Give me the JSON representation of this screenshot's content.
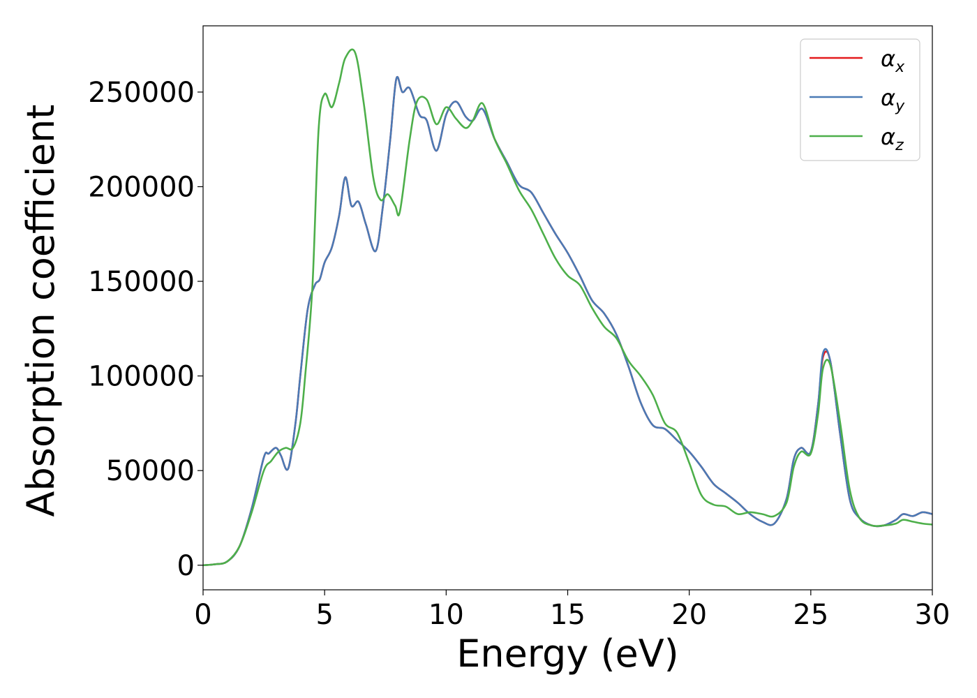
{
  "chart_data": {
    "type": "line",
    "xlabel": "Energy (eV)",
    "ylabel": "Absorption coefficient",
    "xlim": [
      0,
      30
    ],
    "ylim": [
      -13000,
      285000
    ],
    "grid": false,
    "legend_position": "top-right",
    "x_ticks": [
      0,
      5,
      10,
      15,
      20,
      25,
      30
    ],
    "y_ticks": [
      0,
      50000,
      100000,
      150000,
      200000,
      250000
    ],
    "series": [
      {
        "name": "αx",
        "symbol": "α",
        "subscript": "x",
        "color": "#e41a1c",
        "x": [
          0,
          0.5,
          1.0,
          1.5,
          2.0,
          2.5,
          2.7,
          3.0,
          3.2,
          3.5,
          3.8,
          4.0,
          4.3,
          4.6,
          4.8,
          5.0,
          5.3,
          5.6,
          5.85,
          6.1,
          6.4,
          6.7,
          7.1,
          7.4,
          7.7,
          7.95,
          8.2,
          8.5,
          8.9,
          9.2,
          9.6,
          10.0,
          10.4,
          10.8,
          11.1,
          11.5,
          12.0,
          12.5,
          13.0,
          13.5,
          14.0,
          14.5,
          15.0,
          15.5,
          16.0,
          16.5,
          17.0,
          17.5,
          18.0,
          18.5,
          19.0,
          19.5,
          20.0,
          20.5,
          21.0,
          21.5,
          22.0,
          22.5,
          23.0,
          23.5,
          24.0,
          24.3,
          24.6,
          25.0,
          25.3,
          25.5,
          25.8,
          26.2,
          26.6,
          27.0,
          27.5,
          28.0,
          28.5,
          28.8,
          29.2,
          29.6,
          30.0
        ],
        "y": [
          0,
          500,
          2000,
          10000,
          30000,
          57000,
          59000,
          62000,
          58000,
          51000,
          75000,
          100000,
          135000,
          148000,
          151000,
          160000,
          168000,
          185000,
          205000,
          190000,
          192000,
          180000,
          166000,
          190000,
          225000,
          257000,
          250000,
          252000,
          238000,
          235000,
          219000,
          238000,
          245000,
          237000,
          235000,
          241000,
          225000,
          213000,
          201000,
          197000,
          186000,
          175000,
          165000,
          153000,
          140000,
          133000,
          122000,
          105000,
          86000,
          74000,
          72000,
          66000,
          60000,
          52000,
          43000,
          38000,
          33000,
          27000,
          23000,
          22000,
          35000,
          56000,
          62000,
          60000,
          85000,
          110000,
          108000,
          70000,
          35000,
          25000,
          21000,
          21000,
          24000,
          27000,
          26000,
          28000,
          27000
        ]
      },
      {
        "name": "αy",
        "symbol": "α",
        "subscript": "y",
        "color": "#4a7ab5",
        "x": [
          0,
          0.5,
          1.0,
          1.5,
          2.0,
          2.5,
          2.7,
          3.0,
          3.2,
          3.5,
          3.8,
          4.0,
          4.3,
          4.6,
          4.8,
          5.0,
          5.3,
          5.6,
          5.85,
          6.1,
          6.4,
          6.7,
          7.1,
          7.4,
          7.7,
          7.95,
          8.2,
          8.5,
          8.9,
          9.2,
          9.6,
          10.0,
          10.4,
          10.8,
          11.1,
          11.5,
          12.0,
          12.5,
          13.0,
          13.5,
          14.0,
          14.5,
          15.0,
          15.5,
          16.0,
          16.5,
          17.0,
          17.5,
          18.0,
          18.5,
          19.0,
          19.5,
          20.0,
          20.5,
          21.0,
          21.5,
          22.0,
          22.5,
          23.0,
          23.5,
          24.0,
          24.3,
          24.6,
          25.0,
          25.3,
          25.5,
          25.8,
          26.2,
          26.6,
          27.0,
          27.5,
          28.0,
          28.5,
          28.8,
          29.2,
          29.6,
          30.0
        ],
        "y": [
          0,
          500,
          2000,
          10000,
          30000,
          57000,
          59000,
          62000,
          58000,
          51000,
          75000,
          100000,
          135000,
          148000,
          151000,
          160000,
          168000,
          185000,
          205000,
          190000,
          192000,
          180000,
          166000,
          190000,
          225000,
          257000,
          250000,
          252000,
          238000,
          235000,
          219000,
          238000,
          245000,
          237000,
          235000,
          241000,
          225000,
          213000,
          201000,
          197000,
          186000,
          175000,
          165000,
          153000,
          140000,
          133000,
          122000,
          105000,
          86000,
          74000,
          72000,
          66000,
          60000,
          52000,
          43000,
          38000,
          33000,
          27000,
          23000,
          22000,
          35000,
          56000,
          62000,
          60000,
          85000,
          112000,
          108000,
          70000,
          35000,
          25000,
          21000,
          21000,
          24000,
          27000,
          26000,
          28000,
          27000
        ]
      },
      {
        "name": "αz",
        "symbol": "α",
        "subscript": "z",
        "color": "#4daf4a",
        "x": [
          0,
          0.5,
          1.0,
          1.5,
          2.0,
          2.5,
          2.8,
          3.1,
          3.4,
          3.7,
          4.0,
          4.2,
          4.5,
          4.75,
          5.0,
          5.3,
          5.6,
          5.85,
          6.25,
          6.6,
          7.0,
          7.3,
          7.6,
          7.9,
          8.1,
          8.5,
          8.8,
          9.2,
          9.6,
          10.0,
          10.4,
          10.8,
          11.1,
          11.5,
          12.0,
          12.5,
          13.0,
          13.5,
          14.0,
          14.5,
          15.0,
          15.5,
          16.0,
          16.5,
          17.0,
          17.5,
          18.0,
          18.5,
          19.0,
          19.5,
          20.0,
          20.5,
          21.0,
          21.5,
          22.0,
          22.5,
          23.0,
          23.5,
          24.0,
          24.3,
          24.6,
          25.0,
          25.3,
          25.5,
          25.8,
          26.2,
          26.6,
          27.0,
          27.5,
          28.0,
          28.5,
          28.8,
          29.2,
          29.6,
          30.0
        ],
        "y": [
          0,
          500,
          2000,
          10000,
          28000,
          50000,
          55000,
          60000,
          62000,
          62000,
          75000,
          100000,
          148000,
          230000,
          249000,
          242000,
          255000,
          268000,
          271000,
          245000,
          205000,
          193000,
          196000,
          190000,
          187000,
          225000,
          245000,
          246000,
          233000,
          242000,
          236000,
          231000,
          235000,
          244000,
          225000,
          212000,
          198000,
          188000,
          175000,
          162000,
          153000,
          148000,
          136000,
          126000,
          120000,
          108000,
          100000,
          90000,
          75000,
          70000,
          54000,
          37000,
          32000,
          31000,
          27000,
          28000,
          27000,
          26000,
          33000,
          52000,
          60000,
          59000,
          80000,
          104000,
          106000,
          76000,
          40000,
          25000,
          21000,
          21000,
          22000,
          24000,
          23000,
          22000,
          21500
        ]
      }
    ]
  }
}
